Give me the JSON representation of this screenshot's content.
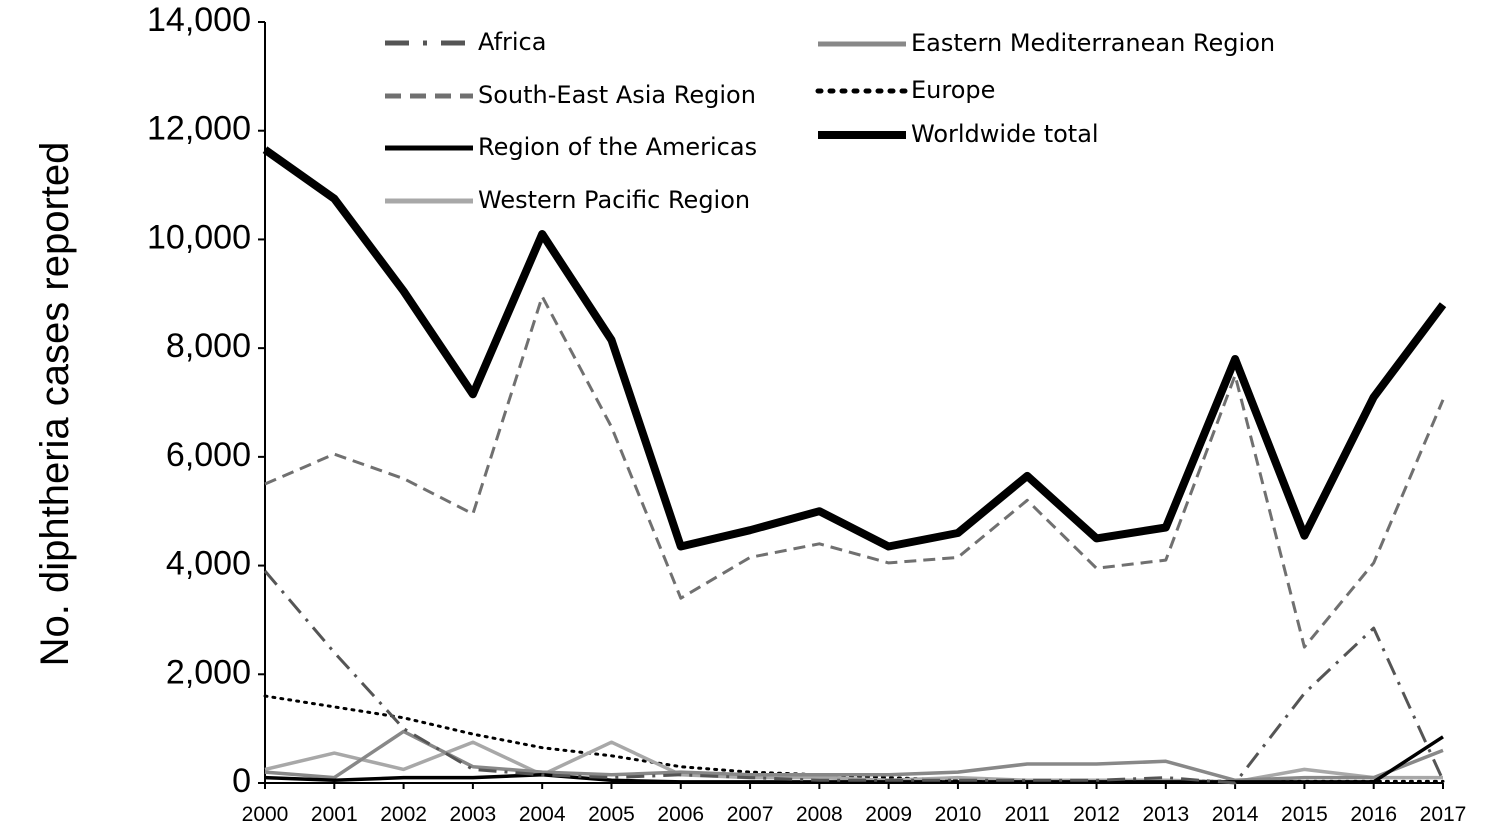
{
  "chart_data": {
    "type": "line",
    "title": "",
    "xlabel": "",
    "ylabel": "No. diphtheria cases reported",
    "categories": [
      "2000",
      "2001",
      "2002",
      "2003",
      "2004",
      "2005",
      "2006",
      "2007",
      "2008",
      "2009",
      "2010",
      "2011",
      "2012",
      "2013",
      "2014",
      "2015",
      "2016",
      "2017"
    ],
    "ylim": [
      0,
      14000
    ],
    "y_ticks": [
      "0",
      "2,000",
      "4,000",
      "6,000",
      "8,000",
      "10,000",
      "12,000",
      "14,000"
    ],
    "y_tick_values": [
      0,
      2000,
      4000,
      6000,
      8000,
      10000,
      12000,
      14000
    ],
    "grid": false,
    "legend_position": "top, two columns",
    "series": [
      {
        "name": "Africa",
        "color": "#555555",
        "style": "dash-dot",
        "values": [
          3900,
          2400,
          1000,
          250,
          150,
          100,
          150,
          100,
          50,
          50,
          50,
          50,
          50,
          100,
          0,
          1650,
          2850,
          50
        ]
      },
      {
        "name": "South-East Asia Region",
        "color": "#707070",
        "style": "dashed",
        "values": [
          5500,
          6050,
          5600,
          4950,
          8950,
          6550,
          3400,
          4150,
          4400,
          4050,
          4150,
          5200,
          3950,
          4100,
          7500,
          2500,
          4050,
          7050
        ]
      },
      {
        "name": "Region of the Americas",
        "color": "#000000",
        "style": "solid",
        "values": [
          100,
          50,
          100,
          100,
          150,
          50,
          20,
          20,
          20,
          20,
          20,
          20,
          20,
          20,
          20,
          20,
          20,
          850
        ]
      },
      {
        "name": "Western Pacific Region",
        "color": "#a8a8a8",
        "style": "solid",
        "values": [
          250,
          550,
          250,
          750,
          150,
          750,
          150,
          100,
          100,
          50,
          100,
          50,
          50,
          50,
          20,
          250,
          100,
          100
        ]
      },
      {
        "name": "Eastern Mediterranean Region",
        "color": "#888888",
        "style": "solid",
        "values": [
          200,
          100,
          950,
          300,
          200,
          150,
          200,
          150,
          150,
          150,
          200,
          350,
          350,
          400,
          50,
          100,
          100,
          600
        ]
      },
      {
        "name": "Europe",
        "color": "#000000",
        "style": "dotted",
        "values": [
          1600,
          1400,
          1200,
          900,
          650,
          500,
          300,
          200,
          150,
          100,
          50,
          50,
          50,
          50,
          30,
          30,
          30,
          30
        ]
      },
      {
        "name": "Worldwide total",
        "color": "#000000",
        "style": "thick",
        "values": [
          11650,
          10750,
          9050,
          7150,
          10100,
          8150,
          4350,
          4650,
          5000,
          4350,
          4600,
          5650,
          4500,
          4700,
          7800,
          4550,
          7100,
          8800
        ]
      }
    ]
  }
}
